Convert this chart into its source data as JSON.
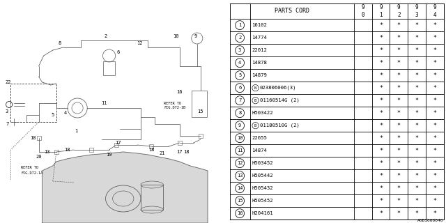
{
  "diagram_label": "A0B1000040",
  "rows": [
    {
      "num": "1",
      "part": "16102",
      "special": null,
      "cols": [
        "",
        "*",
        "*",
        "*",
        "*"
      ]
    },
    {
      "num": "2",
      "part": "14774",
      "special": null,
      "cols": [
        "",
        "*",
        "*",
        "*",
        "*"
      ]
    },
    {
      "num": "3",
      "part": "22012",
      "special": null,
      "cols": [
        "",
        "*",
        "*",
        "*",
        "*"
      ]
    },
    {
      "num": "4",
      "part": "14878",
      "special": null,
      "cols": [
        "",
        "*",
        "*",
        "*",
        "*"
      ]
    },
    {
      "num": "5",
      "part": "14879",
      "special": null,
      "cols": [
        "",
        "*",
        "*",
        "*",
        "*"
      ]
    },
    {
      "num": "6",
      "part": "023806006(3)",
      "special": "N",
      "cols": [
        "",
        "*",
        "*",
        "*",
        "*"
      ]
    },
    {
      "num": "7",
      "part": "01160514G (2)",
      "special": "B",
      "cols": [
        "",
        "*",
        "*",
        "*",
        "*"
      ]
    },
    {
      "num": "8",
      "part": "H503422",
      "special": null,
      "cols": [
        "",
        "*",
        "*",
        "*",
        "*"
      ]
    },
    {
      "num": "9",
      "part": "01180510G (2)",
      "special": "B",
      "cols": [
        "",
        "*",
        "*",
        "*",
        "*"
      ]
    },
    {
      "num": "10",
      "part": "22655",
      "special": null,
      "cols": [
        "",
        "*",
        "*",
        "*",
        "*"
      ]
    },
    {
      "num": "11",
      "part": "14874",
      "special": null,
      "cols": [
        "",
        "*",
        "*",
        "*",
        "*"
      ]
    },
    {
      "num": "12",
      "part": "H503452",
      "special": null,
      "cols": [
        "",
        "*",
        "*",
        "*",
        "*"
      ]
    },
    {
      "num": "13",
      "part": "H505442",
      "special": null,
      "cols": [
        "",
        "*",
        "*",
        "*",
        "*"
      ]
    },
    {
      "num": "14",
      "part": "H505432",
      "special": null,
      "cols": [
        "",
        "*",
        "*",
        "*",
        "*"
      ]
    },
    {
      "num": "15",
      "part": "H505452",
      "special": null,
      "cols": [
        "",
        "*",
        "*",
        "*",
        "*"
      ]
    },
    {
      "num": "16",
      "part": "H204161",
      "special": null,
      "cols": [
        "",
        "*",
        "*",
        "*",
        "*"
      ]
    }
  ],
  "year_cols": [
    "9\n0",
    "9\n1",
    "9\n2",
    "9\n3",
    "9\n4"
  ],
  "bg_color": "#ffffff",
  "line_color": "#000000",
  "diagram_gray": "#b0b0b0"
}
